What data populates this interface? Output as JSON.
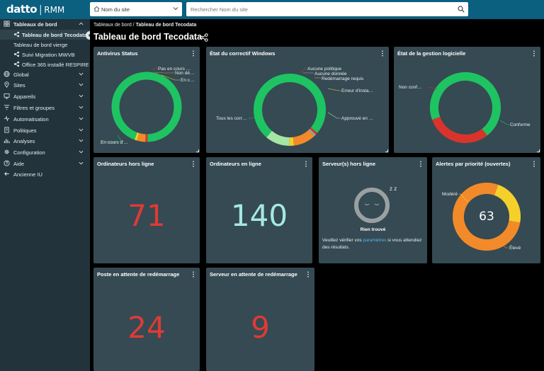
{
  "topbar": {
    "logo": "datto",
    "product": "RMM",
    "site_select": {
      "value": "Nom du site"
    },
    "search": {
      "placeholder": "Rechercher Nom du site"
    }
  },
  "sidebar": {
    "items": [
      {
        "label": "Tableaux de bord",
        "icon": "dashboard-icon"
      },
      {
        "label": "Tableau de bord Tecodata",
        "icon": "share-icon"
      },
      {
        "label": "Tableau de bord vierge"
      },
      {
        "label": "Suivi Migration MWVB",
        "icon": "share-icon"
      },
      {
        "label": "Office 365 installé RESPIRE",
        "icon": "share-icon"
      },
      {
        "label": "Global",
        "icon": "globe-icon"
      },
      {
        "label": "Sites",
        "icon": "location-icon"
      },
      {
        "label": "Appareils",
        "icon": "devices-icon"
      },
      {
        "label": "Filtres et groupes",
        "icon": "filter-icon"
      },
      {
        "label": "Automatisation",
        "icon": "automation-icon"
      },
      {
        "label": "Politiques",
        "icon": "policy-icon"
      },
      {
        "label": "Analyses",
        "icon": "analytics-icon"
      },
      {
        "label": "Configuration",
        "icon": "gear-icon"
      },
      {
        "label": "Aide",
        "icon": "help-icon"
      },
      {
        "label": "Ancienne IU",
        "icon": "back-arrow-icon"
      }
    ]
  },
  "breadcrumb": {
    "root": "Tableaux de bord",
    "separator": "/",
    "current": "Tableau de bord Tecodata"
  },
  "page_title": "Tableau de bord Tecodata",
  "widgets": {
    "antivirus": {
      "title": "Antivirus Status",
      "labels": [
        "Pas en cours …",
        "Non dé…",
        "En c…",
        "En cours d'…"
      ]
    },
    "patch": {
      "title": "État du correctif Windows",
      "labels": [
        "Aucune politique",
        "Aucune donnée",
        "Redémarrage requis",
        "Erreur d'insta…",
        "Approuvé en …",
        "Tous les corr…"
      ]
    },
    "software": {
      "title": "État de la gestion logicielle",
      "labels": [
        "Non conf…",
        "Conforme"
      ]
    },
    "offline": {
      "title": "Ordinateurs hors ligne",
      "value": "71"
    },
    "online": {
      "title": "Ordinateurs en ligne",
      "value": "140"
    },
    "servers_offline": {
      "title": "Serveur(s) hors ligne",
      "sleep": "z z",
      "not_found": "Rien trouvé",
      "message_before": "Veuillez vérifier vos",
      "message_link": "paramètres",
      "message_after": "si vous attendiez des résultats."
    },
    "alerts": {
      "title": "Alertes par priorité (ouvertes)",
      "center": "63",
      "labels": [
        "Modéré",
        "Élevé"
      ]
    },
    "reboot_workstation": {
      "title": "Poste en attente de redémarrage",
      "value": "24"
    },
    "reboot_server": {
      "title": "Serveur en attente de redémarrage",
      "value": "9"
    }
  },
  "colors": {
    "green": "#1ec462",
    "orange": "#f28a2a",
    "red": "#d9342c",
    "yellow": "#f5d02a",
    "light_green": "#a6e6a3",
    "gray": "#9aa0a2",
    "link": "#4fb8e8",
    "number_red": "#e03a35",
    "number_teal": "#a6e8e3"
  },
  "chart_data": [
    {
      "type": "pie",
      "title": "Antivirus Status",
      "slices": [
        {
          "label": "En cours d'…",
          "value": 94,
          "color": "#1ec462"
        },
        {
          "label": "Pas en cours …",
          "value": 1,
          "color": "#d9342c"
        },
        {
          "label": "Non dé…",
          "value": 4,
          "color": "#f28a2a"
        },
        {
          "label": "En c…",
          "value": 1,
          "color": "#f5d02a"
        }
      ]
    },
    {
      "type": "pie",
      "title": "État du correctif Windows",
      "slices": [
        {
          "label": "Tous les corr…",
          "value": 75,
          "color": "#1ec462"
        },
        {
          "label": "Aucune politique",
          "value": 1,
          "color": "#d9342c"
        },
        {
          "label": "Aucune donnée",
          "value": 1,
          "color": "#9aa0a2"
        },
        {
          "label": "Redémarrage requis",
          "value": 10,
          "color": "#f28a2a"
        },
        {
          "label": "Erreur d'insta…",
          "value": 2,
          "color": "#f5d02a"
        },
        {
          "label": "Approuvé en …",
          "value": 11,
          "color": "#a6e6a3"
        }
      ]
    },
    {
      "type": "pie",
      "title": "État de la gestion logicielle",
      "slices": [
        {
          "label": "Conforme",
          "value": 70,
          "color": "#1ec462"
        },
        {
          "label": "Non conf…",
          "value": 30,
          "color": "#d9342c"
        }
      ]
    },
    {
      "type": "pie",
      "title": "Alertes par priorité (ouvertes)",
      "slices": [
        {
          "label": "Élevé",
          "value": 49,
          "color": "#f28a2a"
        },
        {
          "label": "Modéré",
          "value": 14,
          "color": "#f5d02a"
        }
      ]
    }
  ]
}
